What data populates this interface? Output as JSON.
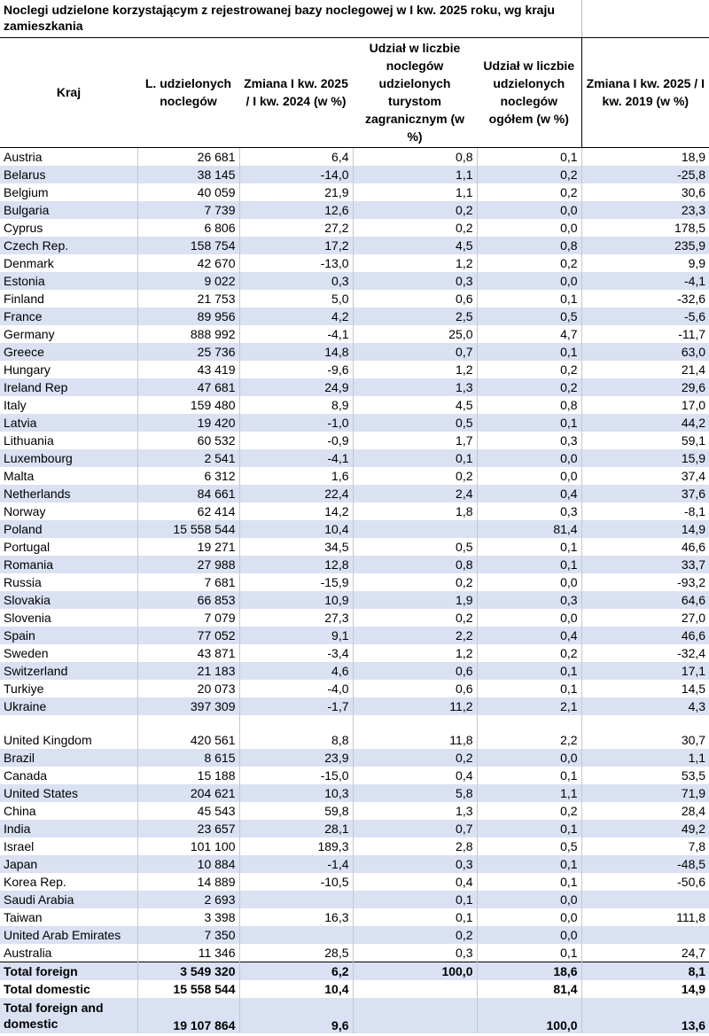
{
  "title": "Noclegi udzielone korzystającym z rejestrowanej bazy noclegowej w I kw. 2025 roku, wg kraju zamieszkania",
  "columns": [
    "Kraj",
    "L. udzielonych noclegów",
    "Zmiana I kw. 2025 / I kw. 2024 (w %)",
    "Udział w liczbie noclegów udzielonych turystom zagranicznym (w %)",
    "Udział w liczbie udzielonych noclegów ogółem (w %)",
    "Zmiana I kw. 2025 / I kw. 2019 (w %)"
  ],
  "rows": [
    [
      "Austria",
      "26 681",
      "6,4",
      "0,8",
      "0,1",
      "18,9"
    ],
    [
      "Belarus",
      "38 145",
      "-14,0",
      "1,1",
      "0,2",
      "-25,8"
    ],
    [
      "Belgium",
      "40 059",
      "21,9",
      "1,1",
      "0,2",
      "30,6"
    ],
    [
      "Bulgaria",
      "7 739",
      "12,6",
      "0,2",
      "0,0",
      "23,3"
    ],
    [
      "Cyprus",
      "6 806",
      "27,2",
      "0,2",
      "0,0",
      "178,5"
    ],
    [
      "Czech Rep.",
      "158 754",
      "17,2",
      "4,5",
      "0,8",
      "235,9"
    ],
    [
      "Denmark",
      "42 670",
      "-13,0",
      "1,2",
      "0,2",
      "9,9"
    ],
    [
      "Estonia",
      "9 022",
      "0,3",
      "0,3",
      "0,0",
      "-4,1"
    ],
    [
      "Finland",
      "21 753",
      "5,0",
      "0,6",
      "0,1",
      "-32,6"
    ],
    [
      "France",
      "89 956",
      "4,2",
      "2,5",
      "0,5",
      "-5,6"
    ],
    [
      "Germany",
      "888 992",
      "-4,1",
      "25,0",
      "4,7",
      "-11,7"
    ],
    [
      "Greece",
      "25 736",
      "14,8",
      "0,7",
      "0,1",
      "63,0"
    ],
    [
      "Hungary",
      "43 419",
      "-9,6",
      "1,2",
      "0,2",
      "21,4"
    ],
    [
      "Ireland Rep",
      "47 681",
      "24,9",
      "1,3",
      "0,2",
      "29,6"
    ],
    [
      "Italy",
      "159 480",
      "8,9",
      "4,5",
      "0,8",
      "17,0"
    ],
    [
      "Latvia",
      "19 420",
      "-1,0",
      "0,5",
      "0,1",
      "44,2"
    ],
    [
      "Lithuania",
      "60 532",
      "-0,9",
      "1,7",
      "0,3",
      "59,1"
    ],
    [
      "Luxembourg",
      "2 541",
      "-4,1",
      "0,1",
      "0,0",
      "15,9"
    ],
    [
      "Malta",
      "6 312",
      "1,6",
      "0,2",
      "0,0",
      "37,4"
    ],
    [
      "Netherlands",
      "84 661",
      "22,4",
      "2,4",
      "0,4",
      "37,6"
    ],
    [
      "Norway",
      "62 414",
      "14,2",
      "1,8",
      "0,3",
      "-8,1"
    ],
    [
      "Poland",
      "15 558 544",
      "10,4",
      "",
      "81,4",
      "14,9"
    ],
    [
      "Portugal",
      "19 271",
      "34,5",
      "0,5",
      "0,1",
      "46,6"
    ],
    [
      "Romania",
      "27 988",
      "12,8",
      "0,8",
      "0,1",
      "33,7"
    ],
    [
      "Russia",
      "7 681",
      "-15,9",
      "0,2",
      "0,0",
      "-93,2"
    ],
    [
      "Slovakia",
      "66 853",
      "10,9",
      "1,9",
      "0,3",
      "64,6"
    ],
    [
      "Slovenia",
      "7 079",
      "27,3",
      "0,2",
      "0,0",
      "27,0"
    ],
    [
      "Spain",
      "77 052",
      "9,1",
      "2,2",
      "0,4",
      "46,6"
    ],
    [
      "Sweden",
      "43 871",
      "-3,4",
      "1,2",
      "0,2",
      "-32,4"
    ],
    [
      "Switzerland",
      "21 183",
      "4,6",
      "0,6",
      "0,1",
      "17,1"
    ],
    [
      "Turkiye",
      "20 073",
      "-4,0",
      "0,6",
      "0,1",
      "14,5"
    ],
    [
      "Ukraine",
      "397 309",
      "-1,7",
      "11,2",
      "2,1",
      "4,3"
    ],
    [
      "United Kingdom",
      "420 561",
      "8,8",
      "11,8",
      "2,2",
      "30,7"
    ],
    [
      "Brazil",
      "8 615",
      "23,9",
      "0,2",
      "0,0",
      "1,1"
    ],
    [
      "Canada",
      "15 188",
      "-15,0",
      "0,4",
      "0,1",
      "53,5"
    ],
    [
      "United States",
      "204 621",
      "10,3",
      "5,8",
      "1,1",
      "71,9"
    ],
    [
      "China",
      "45 543",
      "59,8",
      "1,3",
      "0,2",
      "28,4"
    ],
    [
      "India",
      "23 657",
      "28,1",
      "0,7",
      "0,1",
      "49,2"
    ],
    [
      "Israel",
      "101 100",
      "189,3",
      "2,8",
      "0,5",
      "7,8"
    ],
    [
      "Japan",
      "10 884",
      "-1,4",
      "0,3",
      "0,1",
      "-48,5"
    ],
    [
      "Korea Rep.",
      "14 889",
      "-10,5",
      "0,4",
      "0,1",
      "-50,6"
    ],
    [
      "Saudi Arabia",
      "2 693",
      "",
      "0,1",
      "0,0",
      ""
    ],
    [
      "Taiwan",
      "3 398",
      "16,3",
      "0,1",
      "0,0",
      "111,8"
    ],
    [
      "United Arab Emirates",
      "7 350",
      "",
      "0,2",
      "0,0",
      ""
    ],
    [
      "Australia",
      "11 346",
      "28,5",
      "0,3",
      "0,1",
      "24,7"
    ]
  ],
  "totals": [
    [
      "Total foreign",
      "3 549 320",
      "6,2",
      "100,0",
      "18,6",
      "8,1"
    ],
    [
      "Total domestic",
      "15 558 544",
      "10,4",
      "",
      "81,4",
      "14,9"
    ],
    [
      "Total foreign and domestic",
      "19 107 864",
      "9,6",
      "",
      "100,0",
      "13,6"
    ]
  ]
}
